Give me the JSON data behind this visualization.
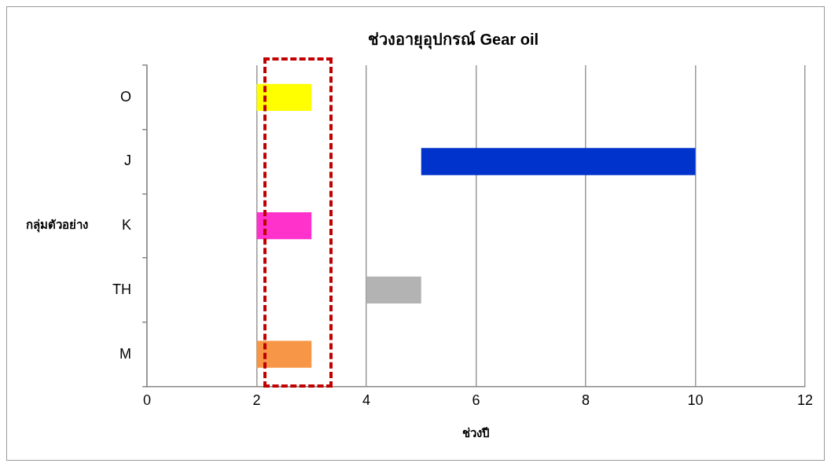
{
  "chart_data": {
    "type": "bar",
    "orientation": "horizontal",
    "title": "ช่วงอายุอุปกรณ์ Gear oil",
    "xlabel": "ช่วงปี",
    "ylabel": "กลุ่มตัวอย่าง",
    "categories": [
      "O",
      "J",
      "K",
      "TH",
      "M"
    ],
    "base": [
      2,
      5,
      2,
      4,
      2
    ],
    "values": [
      1,
      5,
      1,
      1,
      1
    ],
    "colors": [
      "#ffff00",
      "#0033cc",
      "#ff33cc",
      "#b3b3b3",
      "#f79646"
    ],
    "xlim": [
      0,
      12
    ],
    "xticks": [
      0,
      2,
      4,
      6,
      8,
      10,
      12
    ],
    "grid": "x",
    "legend": false
  }
}
